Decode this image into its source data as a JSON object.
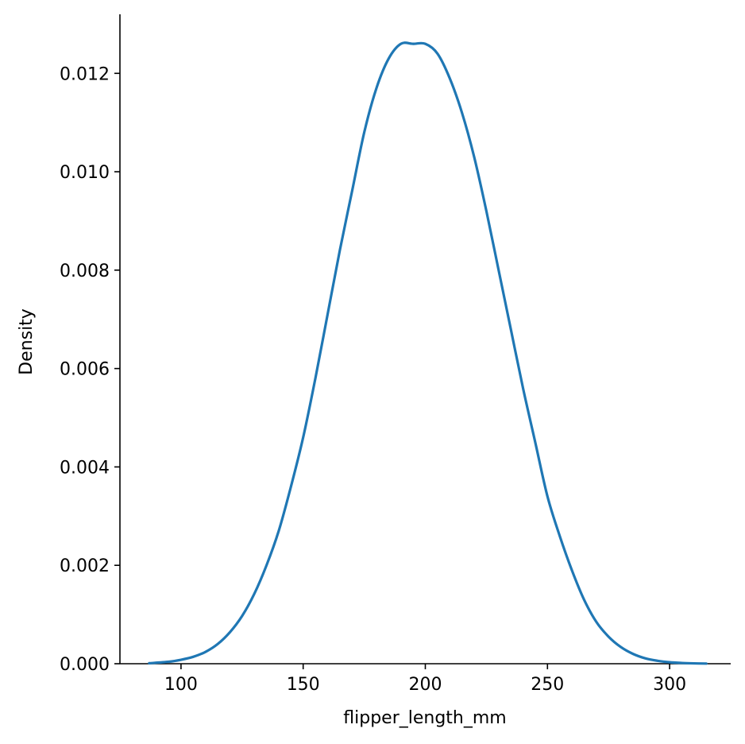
{
  "chart_data": {
    "type": "line",
    "title": "",
    "xlabel": "flipper_length_mm",
    "ylabel": "Density",
    "xlim": [
      75,
      325
    ],
    "ylim": [
      0,
      0.0132
    ],
    "x_ticks": [
      {
        "value": 100,
        "label": "100"
      },
      {
        "value": 150,
        "label": "150"
      },
      {
        "value": 200,
        "label": "200"
      },
      {
        "value": 250,
        "label": "250"
      },
      {
        "value": 300,
        "label": "300"
      }
    ],
    "y_ticks": [
      {
        "value": 0.0,
        "label": "0.000"
      },
      {
        "value": 0.002,
        "label": "0.002"
      },
      {
        "value": 0.004,
        "label": "0.004"
      },
      {
        "value": 0.006,
        "label": "0.006"
      },
      {
        "value": 0.008,
        "label": "0.008"
      },
      {
        "value": 0.01,
        "label": "0.010"
      },
      {
        "value": 0.012,
        "label": "0.012"
      }
    ],
    "grid": false,
    "spines": [
      "left",
      "bottom"
    ],
    "series": [
      {
        "color": "#1f77b4",
        "x": [
          87,
          95,
          100,
          105,
          110,
          115,
          120,
          125,
          130,
          135,
          140,
          145,
          150,
          155,
          160,
          165,
          170,
          175,
          180,
          185,
          190,
          195,
          200,
          205,
          210,
          215,
          220,
          225,
          230,
          235,
          240,
          245,
          250,
          255,
          260,
          265,
          270,
          275,
          280,
          285,
          290,
          295,
          300,
          305,
          310,
          315
        ],
        "y": [
          1e-05,
          4e-05,
          8e-05,
          0.00014,
          0.00024,
          0.0004,
          0.00064,
          0.00097,
          0.00142,
          0.002,
          0.0027,
          0.0036,
          0.0046,
          0.0058,
          0.0071,
          0.0084,
          0.0096,
          0.0108,
          0.0117,
          0.0123,
          0.0126,
          0.0126,
          0.0126,
          0.0124,
          0.0119,
          0.0112,
          0.0103,
          0.0092,
          0.008,
          0.0068,
          0.0056,
          0.0045,
          0.0034,
          0.0026,
          0.0019,
          0.0013,
          0.00085,
          0.00055,
          0.00034,
          0.0002,
          0.00011,
          6e-05,
          3e-05,
          1.5e-05,
          7e-06,
          3e-06
        ]
      }
    ]
  }
}
